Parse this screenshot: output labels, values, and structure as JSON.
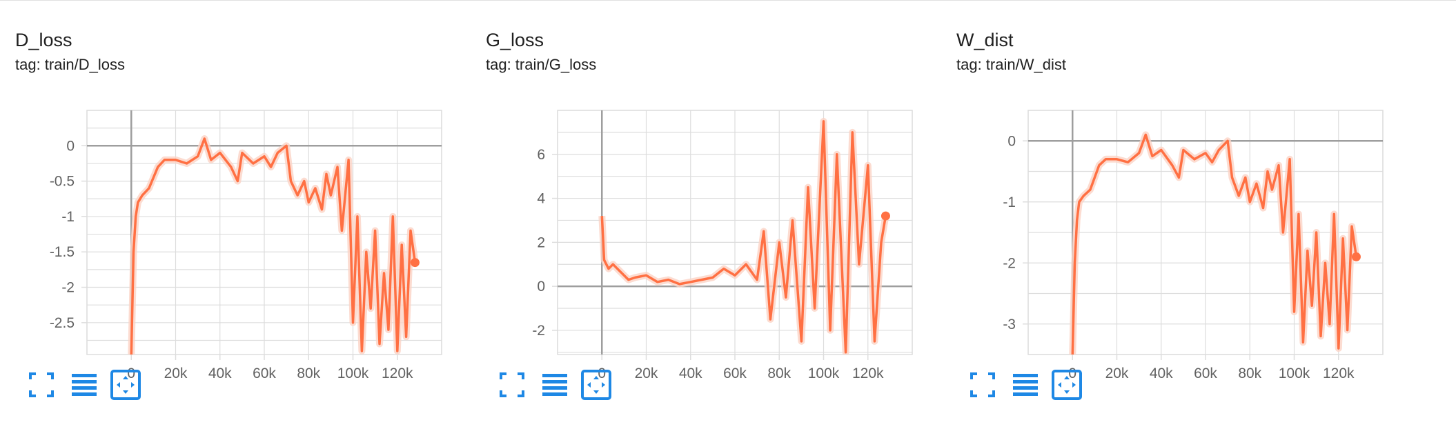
{
  "colors": {
    "accent": "#1e88e5",
    "series": "#ff7043",
    "series_raw": "#fbd3c5",
    "axis": "#9e9e9e",
    "grid": "#dddddd"
  },
  "cards": [
    {
      "title": "D_loss",
      "tag": "tag: train/D_loss",
      "toolbar": {
        "fullscreen_icon": "fullscreen-icon",
        "data_icon": "lines-icon",
        "fit_icon": "fit-domain-icon"
      }
    },
    {
      "title": "G_loss",
      "tag": "tag: train/G_loss",
      "toolbar": {
        "fullscreen_icon": "fullscreen-icon",
        "data_icon": "lines-icon",
        "fit_icon": "fit-domain-icon"
      }
    },
    {
      "title": "W_dist",
      "tag": "tag: train/W_dist",
      "toolbar": {
        "fullscreen_icon": "fullscreen-icon",
        "data_icon": "lines-icon",
        "fit_icon": "fit-domain-icon"
      }
    }
  ],
  "chart_data": [
    {
      "type": "line",
      "title": "D_loss",
      "xlim": [
        -20000,
        140000
      ],
      "ylim": [
        -2.95,
        0.5
      ],
      "x_ticks": [
        "0",
        "20k",
        "40k",
        "60k",
        "80k",
        "100k",
        "120k"
      ],
      "x_tick_values": [
        0,
        20000,
        40000,
        60000,
        80000,
        100000,
        120000
      ],
      "y_ticks": [
        "0",
        "-0.5",
        "-1",
        "-1.5",
        "-2",
        "-2.5"
      ],
      "y_tick_values": [
        0,
        -0.5,
        -1,
        -1.5,
        -2,
        -2.5
      ],
      "grid": true,
      "last_point": {
        "x": 128000,
        "y": -1.65
      },
      "series": [
        {
          "x": [
            0,
            1000,
            2000,
            3000,
            5000,
            8000,
            12000,
            15000,
            20000,
            25000,
            30000,
            33000,
            36000,
            40000,
            45000,
            48000,
            50000,
            55000,
            60000,
            63000,
            66000,
            70000,
            72000,
            75000,
            78000,
            80000,
            83000,
            86000,
            88000,
            90000,
            93000,
            95000,
            98000,
            100000,
            102000,
            104000,
            106000,
            108000,
            110000,
            112000,
            114000,
            116000,
            118000,
            120000,
            122000,
            124000,
            126000,
            128000
          ],
          "y": [
            -2.95,
            -1.5,
            -1.0,
            -0.8,
            -0.7,
            -0.6,
            -0.3,
            -0.2,
            -0.2,
            -0.25,
            -0.15,
            0.1,
            -0.2,
            -0.1,
            -0.3,
            -0.5,
            -0.1,
            -0.25,
            -0.15,
            -0.3,
            -0.1,
            0.0,
            -0.5,
            -0.7,
            -0.5,
            -0.8,
            -0.6,
            -0.9,
            -0.4,
            -0.7,
            -0.3,
            -1.2,
            -0.2,
            -2.5,
            -1.0,
            -2.9,
            -1.5,
            -2.3,
            -1.2,
            -2.8,
            -1.8,
            -2.6,
            -1.0,
            -2.9,
            -1.4,
            -2.7,
            -1.2,
            -1.65
          ]
        }
      ]
    },
    {
      "type": "line",
      "title": "G_loss",
      "xlim": [
        -20000,
        140000
      ],
      "ylim": [
        -3.1,
        8.0
      ],
      "x_ticks": [
        "0",
        "20k",
        "40k",
        "60k",
        "80k",
        "100k",
        "120k"
      ],
      "x_tick_values": [
        0,
        20000,
        40000,
        60000,
        80000,
        100000,
        120000
      ],
      "y_ticks": [
        "6",
        "4",
        "2",
        "0",
        "-2"
      ],
      "y_tick_values": [
        6,
        4,
        2,
        0,
        -2
      ],
      "grid": true,
      "last_point": {
        "x": 128000,
        "y": 3.2
      },
      "series": [
        {
          "x": [
            0,
            1000,
            3000,
            5000,
            8000,
            12000,
            15000,
            20000,
            25000,
            30000,
            35000,
            40000,
            45000,
            50000,
            55000,
            60000,
            65000,
            70000,
            73000,
            76000,
            80000,
            83000,
            86000,
            90000,
            93000,
            96000,
            100000,
            103000,
            106000,
            110000,
            113000,
            116000,
            120000,
            123000,
            126000,
            128000
          ],
          "y": [
            3.2,
            1.2,
            0.8,
            1.0,
            0.7,
            0.3,
            0.4,
            0.5,
            0.2,
            0.3,
            0.1,
            0.2,
            0.3,
            0.4,
            0.8,
            0.5,
            1.0,
            0.3,
            2.5,
            -1.5,
            2.0,
            -0.5,
            3.0,
            -2.5,
            4.5,
            -1.0,
            7.5,
            -2.0,
            6.0,
            -3.0,
            7.0,
            1.0,
            5.5,
            -2.5,
            2.0,
            3.2
          ]
        }
      ]
    },
    {
      "type": "line",
      "title": "W_dist",
      "xlim": [
        -20000,
        140000
      ],
      "ylim": [
        -3.5,
        0.5
      ],
      "x_ticks": [
        "0",
        "20k",
        "40k",
        "60k",
        "80k",
        "100k",
        "120k"
      ],
      "x_tick_values": [
        0,
        20000,
        40000,
        60000,
        80000,
        100000,
        120000
      ],
      "y_ticks": [
        "0",
        "-1",
        "-2",
        "-3"
      ],
      "y_tick_values": [
        0,
        -1,
        -2,
        -3
      ],
      "grid": true,
      "last_point": {
        "x": 128000,
        "y": -1.9
      },
      "series": [
        {
          "x": [
            0,
            1000,
            2000,
            3000,
            5000,
            8000,
            12000,
            15000,
            20000,
            25000,
            30000,
            33000,
            36000,
            40000,
            45000,
            48000,
            50000,
            55000,
            60000,
            63000,
            66000,
            70000,
            72000,
            75000,
            78000,
            80000,
            83000,
            86000,
            88000,
            90000,
            93000,
            95000,
            98000,
            100000,
            102000,
            104000,
            106000,
            108000,
            110000,
            112000,
            114000,
            116000,
            118000,
            120000,
            122000,
            124000,
            126000,
            128000
          ],
          "y": [
            -3.5,
            -2.0,
            -1.3,
            -1.0,
            -0.9,
            -0.8,
            -0.4,
            -0.3,
            -0.3,
            -0.35,
            -0.2,
            0.1,
            -0.25,
            -0.15,
            -0.4,
            -0.6,
            -0.15,
            -0.3,
            -0.2,
            -0.35,
            -0.15,
            0.0,
            -0.6,
            -0.9,
            -0.6,
            -1.0,
            -0.7,
            -1.1,
            -0.5,
            -0.8,
            -0.4,
            -1.5,
            -0.3,
            -2.8,
            -1.2,
            -3.3,
            -1.8,
            -2.7,
            -1.5,
            -3.2,
            -2.0,
            -3.0,
            -1.2,
            -3.4,
            -1.6,
            -3.1,
            -1.4,
            -1.9
          ]
        }
      ]
    }
  ]
}
